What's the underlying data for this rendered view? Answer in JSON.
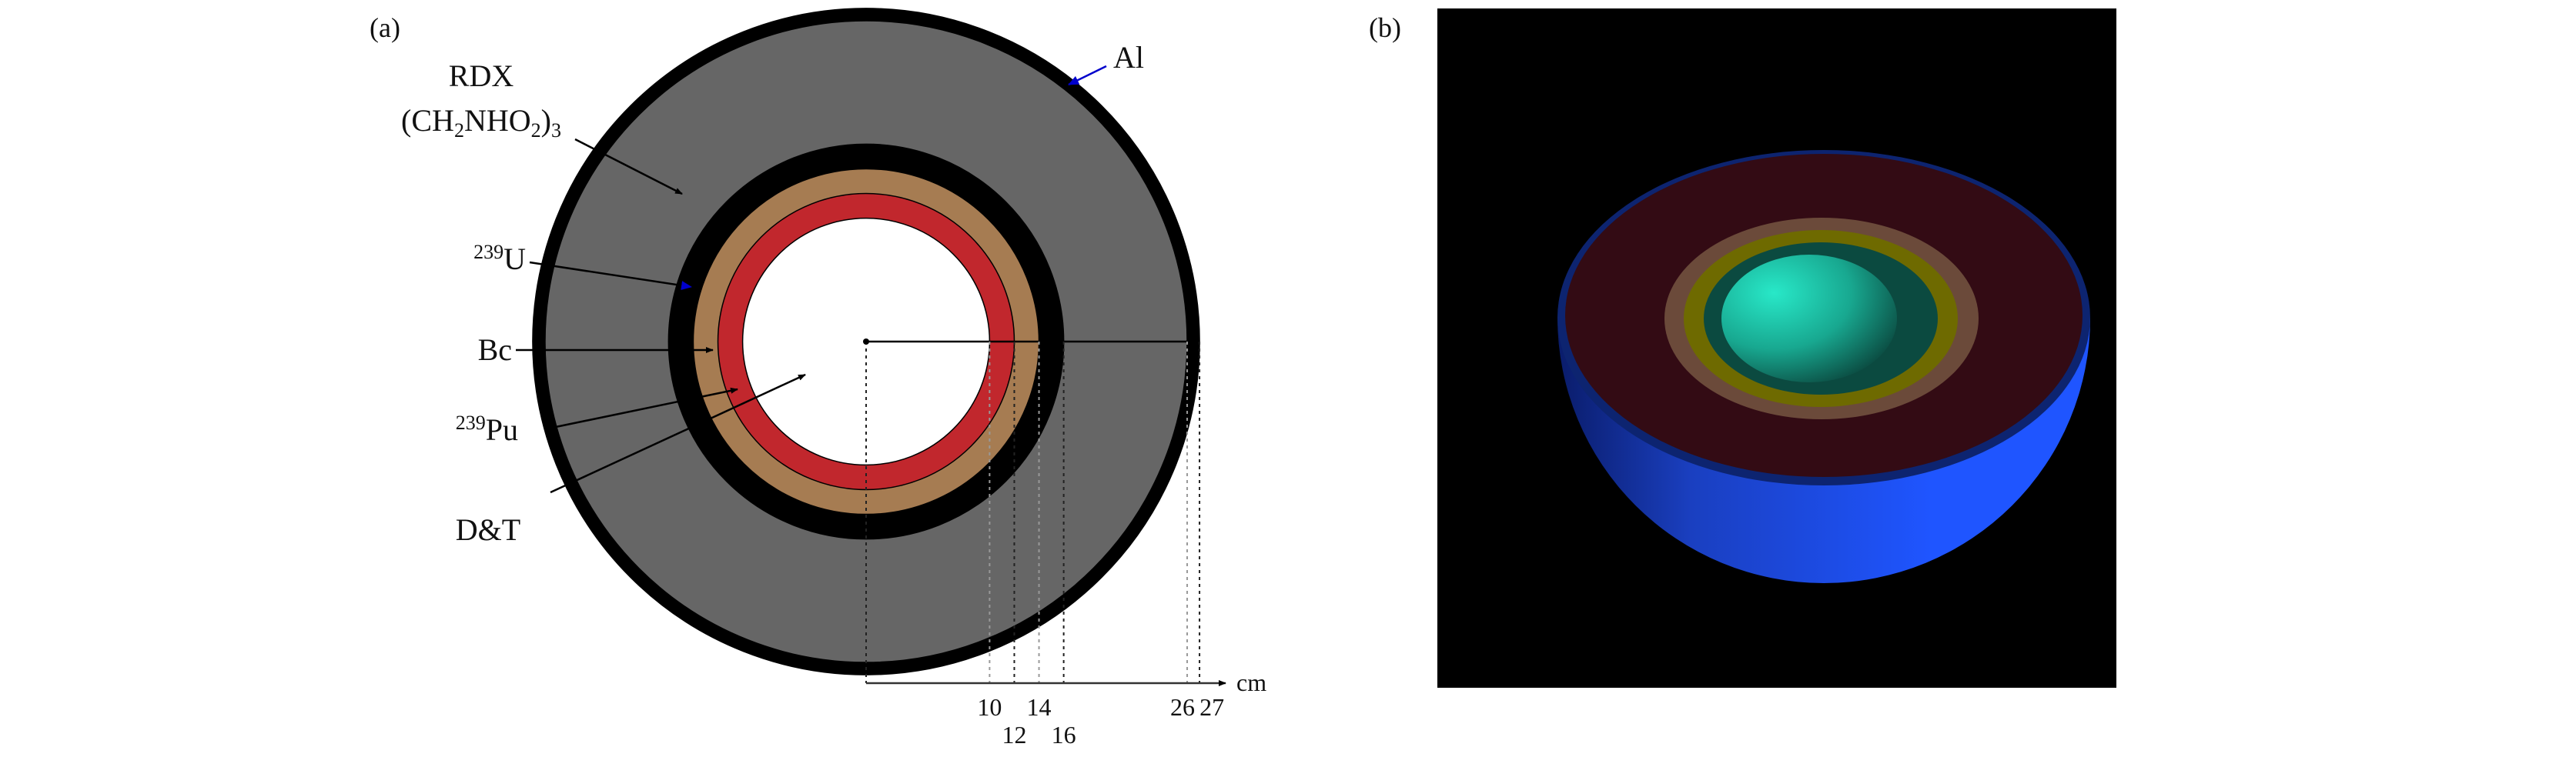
{
  "panel_a": {
    "label": "(a)",
    "unit": "cm",
    "layers": [
      {
        "name": "D&T",
        "outer_radius_cm": 10,
        "color": "#ffffff"
      },
      {
        "name": "239Pu",
        "outer_radius_cm": 12,
        "color": "#c1272d"
      },
      {
        "name": "Bc",
        "outer_radius_cm": 14,
        "color": "#a67c52"
      },
      {
        "name": "239U",
        "outer_radius_cm": 16,
        "color": "#000000"
      },
      {
        "name": "RDX",
        "outer_radius_cm": 26,
        "color": "#666666"
      },
      {
        "name": "Al",
        "outer_radius_cm": 27,
        "color": "#000000"
      }
    ],
    "ticks": [
      "10",
      "12",
      "14",
      "16",
      "26",
      "27"
    ],
    "labels": {
      "rdx": "RDX",
      "rdx_formula": {
        "open": "(CH",
        "s1": "2",
        "mid": "NHO",
        "s2": "2",
        "close": ")",
        "s3": "3"
      },
      "al": "Al",
      "u": {
        "sup": "239",
        "base": "U"
      },
      "bc": "Bc",
      "pu": {
        "sup": "239",
        "base": "Pu"
      },
      "dt": "D&T"
    },
    "arrow_colors": {
      "black": "#000000",
      "blue": "#0000cc"
    }
  },
  "panel_b": {
    "label": "(b)",
    "background": "#000000",
    "colors": {
      "shell": "#1f55ff",
      "rim": "#0d2470",
      "rdx_face": "#330b14",
      "outer_ring": "#6b4a3a",
      "yellow_ring": "#6e6a00",
      "teal_ring": "#0b4a40",
      "core": "#22d8b8"
    }
  }
}
